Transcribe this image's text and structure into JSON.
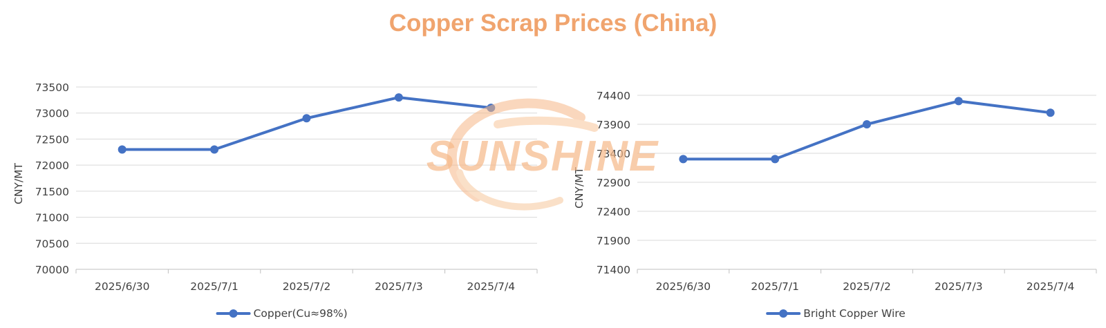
{
  "title": "Copper Scrap Prices (China)",
  "colors": {
    "title": "#F0A46E",
    "series": "#4472C4",
    "grid": "#D9D9D9",
    "axis": "#BFBFBF",
    "text": "#404040",
    "watermark": "#F6B888"
  },
  "watermark_text": "SUNSHINE",
  "chart_data": [
    {
      "type": "line",
      "categories": [
        "2025/6/30",
        "2025/7/1",
        "2025/7/2",
        "2025/7/3",
        "2025/7/4"
      ],
      "series": [
        {
          "name": "Copper(Cu≈98%)",
          "values": [
            72300,
            72300,
            72900,
            73300,
            73100
          ]
        }
      ],
      "ylabel": "CNY/MT",
      "ylim": [
        70000,
        73500
      ],
      "yticks": [
        70000,
        70500,
        71000,
        71500,
        72000,
        72500,
        73000,
        73500
      ],
      "grid": true,
      "legend": "bottom"
    },
    {
      "type": "line",
      "categories": [
        "2025/6/30",
        "2025/7/1",
        "2025/7/2",
        "2025/7/3",
        "2025/7/4"
      ],
      "series": [
        {
          "name": "Bright Copper Wire",
          "values": [
            73300,
            73300,
            73900,
            74300,
            74100
          ]
        }
      ],
      "ylabel": "CNY/MT",
      "ylim": [
        71400,
        74400
      ],
      "yticks": [
        71400,
        71900,
        72400,
        72900,
        73400,
        73900,
        74400
      ],
      "grid": true,
      "legend": "bottom"
    }
  ]
}
